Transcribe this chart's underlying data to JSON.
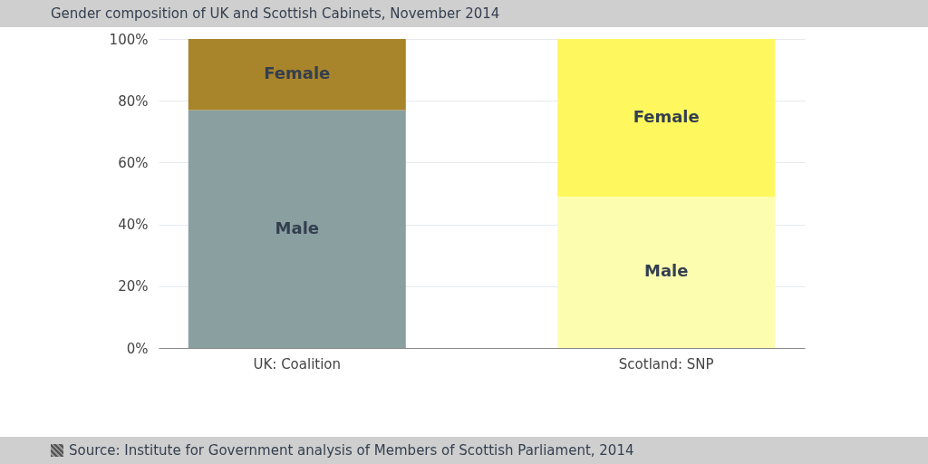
{
  "chart_data": {
    "type": "bar",
    "title": "Gender composition of UK and Scottish Cabinets, November 2014",
    "categories": [
      "UK: Coalition",
      "Scotland:  SNP"
    ],
    "stacked": true,
    "series": [
      {
        "name": "Male",
        "colors": [
          "#8a9fa0",
          "#fdfdb0"
        ],
        "values": [
          77,
          49
        ]
      },
      {
        "name": "Female",
        "colors": [
          "#a8842a",
          "#fff75e"
        ],
        "values": [
          23,
          51
        ]
      }
    ],
    "ylim": [
      0,
      100
    ],
    "yticks": [
      {
        "value": 0,
        "label": "0%"
      },
      {
        "value": 20,
        "label": "20%"
      },
      {
        "value": 40,
        "label": "40%"
      },
      {
        "value": 60,
        "label": "60%"
      },
      {
        "value": 80,
        "label": "80%"
      },
      {
        "value": 100,
        "label": "100%"
      }
    ],
    "grid": "y",
    "legend": false,
    "annotations": [
      "Source: Institute for Government analysis of Members of Scottish Parliament, 2014"
    ]
  }
}
